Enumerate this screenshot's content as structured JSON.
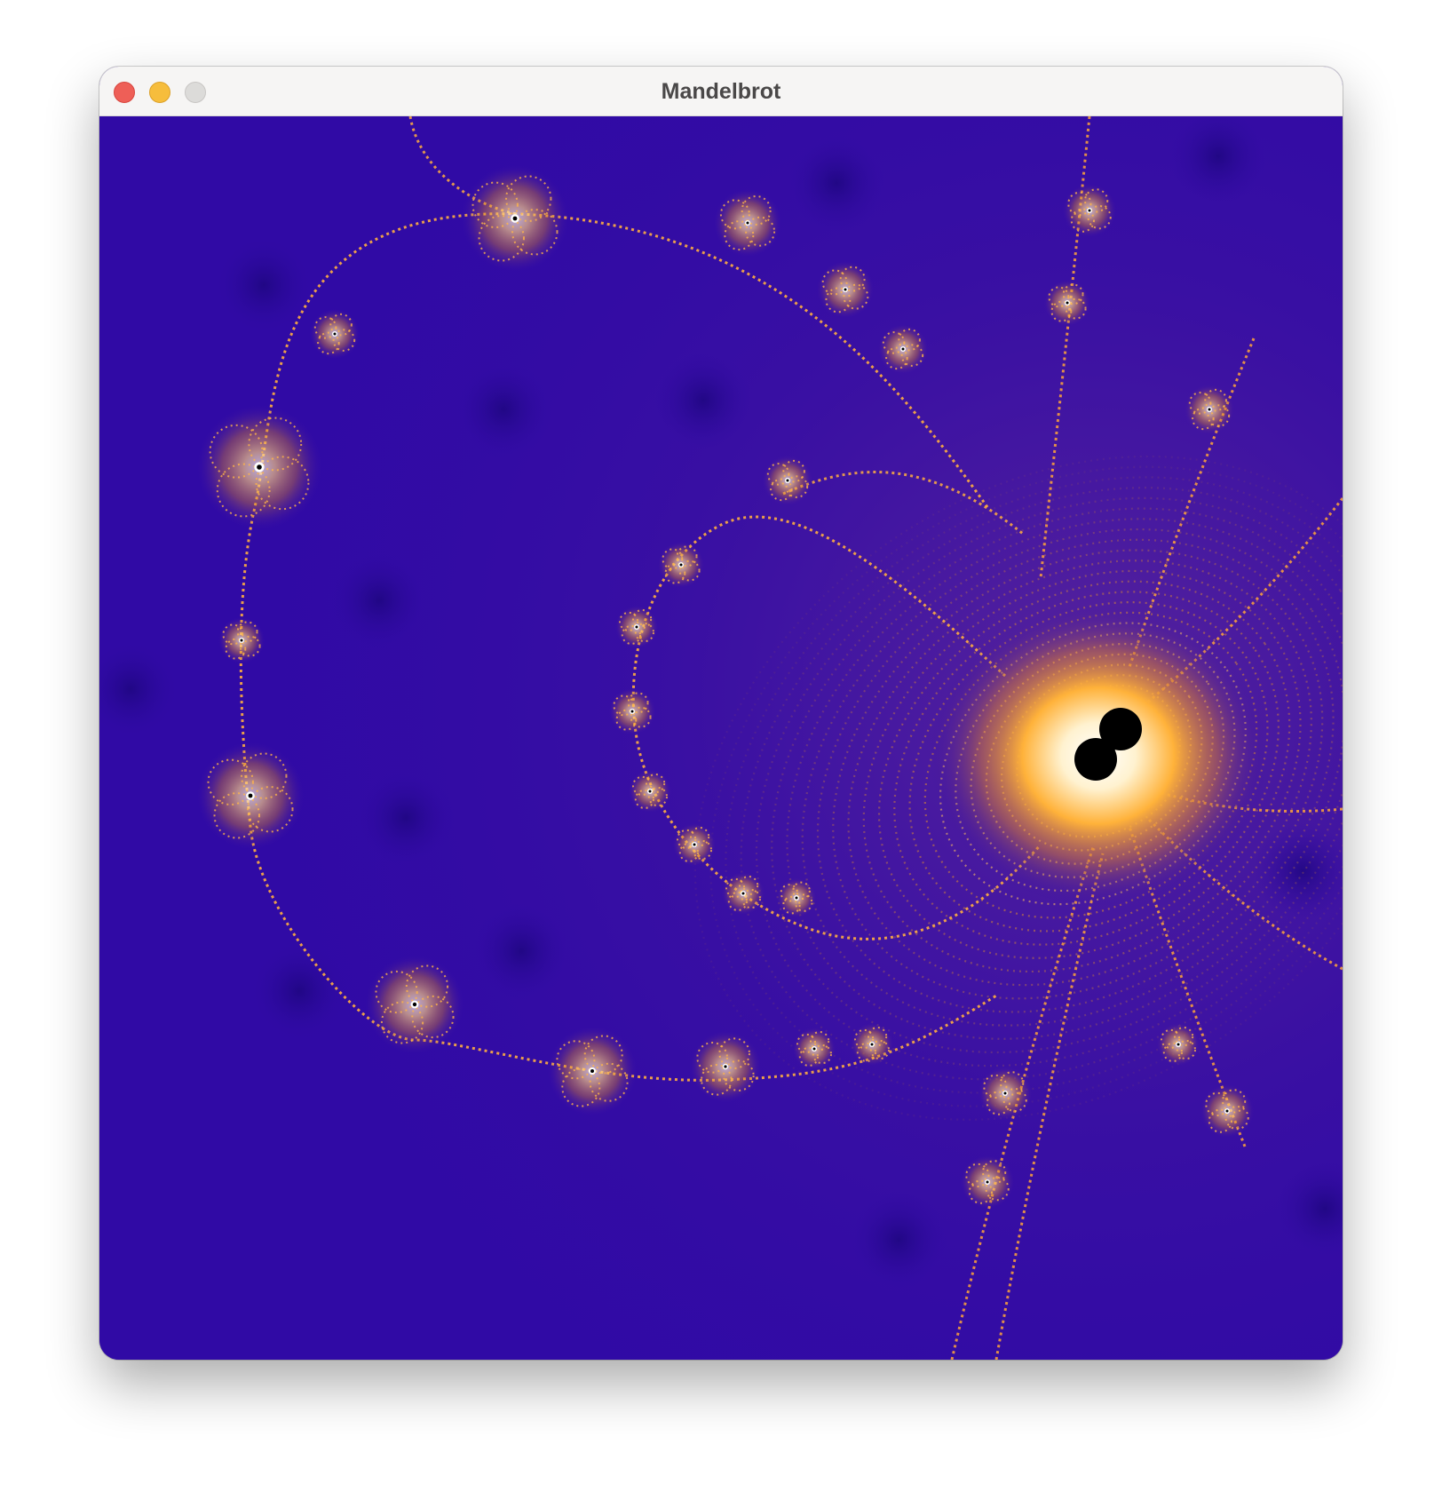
{
  "window": {
    "title": "Mandelbrot",
    "controls": {
      "close": "close-icon",
      "minimize": "minimize-icon",
      "maximize": "maximize-icon"
    }
  },
  "render": {
    "palette": {
      "background": "#300aa5",
      "glow_outer": "#5a2fa0",
      "glow_orange": "#ff9d1a",
      "glow_bright": "#ffe9b0",
      "core_white": "#ffffff",
      "set_interior": "#000000"
    }
  }
}
